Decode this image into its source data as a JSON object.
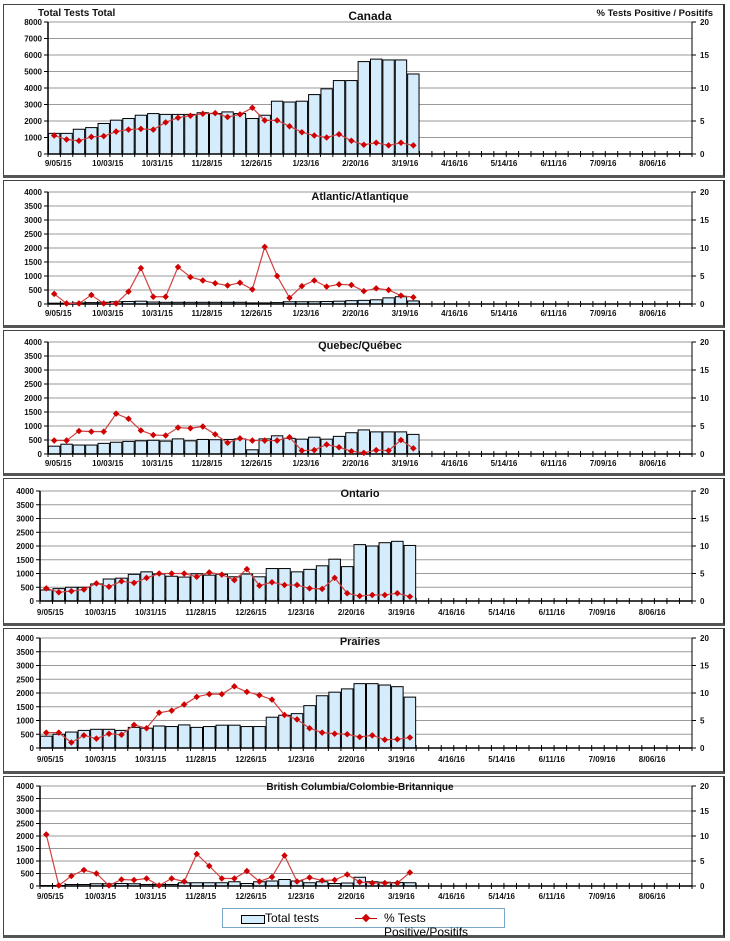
{
  "figure": {
    "left_axis_title": "Total Tests Total",
    "right_axis_title": "% Tests Positive / Positifs",
    "legend": {
      "bar_label": "Total tests",
      "line_label": "% Tests Positive/Positifs"
    },
    "colors": {
      "bar_fill": "#d4ecfb",
      "bar_stroke": "#000000",
      "line": "#d04040",
      "marker": "#d00000",
      "grid": "#9a9a9a"
    }
  },
  "chart_data": [
    {
      "type": "bar+line",
      "title": "Canada",
      "ylabel": "Total Tests Total",
      "y2label": "% Tests Positive / Positifs",
      "ylim": [
        0,
        8000
      ],
      "y_ticks": [
        "0",
        "1000",
        "2000",
        "3000",
        "4000",
        "5000",
        "6000",
        "7000",
        "8000"
      ],
      "y2lim": [
        0,
        20
      ],
      "y2_ticks": [
        "0",
        "5",
        "10",
        "15",
        "20"
      ],
      "x_tick_labels": [
        "9/05/15",
        "10/03/15",
        "10/31/15",
        "11/28/15",
        "12/26/15",
        "1/23/16",
        "2/20/16",
        "3/19/16",
        "4/16/16",
        "5/14/16",
        "6/11/16",
        "7/09/16",
        "8/06/16"
      ],
      "weeks_total": 52,
      "series": [
        {
          "name": "Total tests",
          "values": [
            1250,
            1250,
            1500,
            1600,
            1850,
            2050,
            2150,
            2350,
            2450,
            2400,
            2400,
            2400,
            2500,
            2450,
            2550,
            2450,
            2150,
            2350,
            3200,
            3150,
            3200,
            3600,
            3950,
            4450,
            4450,
            5600,
            5750,
            5700,
            5700,
            4850
          ]
        },
        {
          "name": "% Tests Positive/Positifs",
          "values": [
            2.8,
            2.2,
            2.0,
            2.6,
            2.7,
            3.4,
            3.7,
            3.8,
            3.7,
            4.8,
            5.5,
            5.8,
            6.1,
            6.2,
            5.6,
            6.0,
            7.0,
            5.1,
            5.1,
            4.2,
            3.3,
            2.8,
            2.5,
            3.0,
            2.0,
            1.4,
            1.7,
            1.3,
            1.7,
            1.3
          ]
        }
      ]
    },
    {
      "type": "bar+line",
      "title": "Atlantic/Atlantique",
      "ylim": [
        0,
        4000
      ],
      "y_ticks": [
        "0",
        "500",
        "1000",
        "1500",
        "2000",
        "2500",
        "3000",
        "3500",
        "4000"
      ],
      "y2lim": [
        0,
        20
      ],
      "y2_ticks": [
        "0",
        "5",
        "10",
        "15",
        "20"
      ],
      "x_tick_labels": [
        "9/05/15",
        "10/03/15",
        "10/31/15",
        "11/28/15",
        "12/26/15",
        "1/23/16",
        "2/20/16",
        "3/19/16",
        "4/16/16",
        "5/14/16",
        "6/11/16",
        "7/09/16",
        "8/06/16"
      ],
      "weeks_total": 52,
      "series": [
        {
          "name": "Total tests",
          "values": [
            30,
            30,
            40,
            50,
            60,
            80,
            90,
            100,
            70,
            60,
            60,
            60,
            60,
            60,
            60,
            60,
            40,
            40,
            50,
            80,
            80,
            80,
            90,
            100,
            120,
            130,
            150,
            220,
            260,
            110
          ]
        },
        {
          "name": "% Tests Positive/Positifs",
          "values": [
            1.8,
            0.1,
            0.1,
            1.6,
            0.1,
            0.1,
            2.2,
            6.4,
            1.3,
            1.3,
            6.6,
            4.8,
            4.2,
            3.7,
            3.3,
            3.8,
            2.6,
            10.2,
            5.0,
            1.1,
            3.2,
            4.2,
            3.1,
            3.5,
            3.4,
            2.3,
            2.8,
            2.5,
            1.5,
            1.2
          ]
        }
      ]
    },
    {
      "type": "bar+line",
      "title": "Quebec/Québec",
      "ylim": [
        0,
        4000
      ],
      "y_ticks": [
        "0",
        "500",
        "1000",
        "1500",
        "2000",
        "2500",
        "3000",
        "3500",
        "4000"
      ],
      "y2lim": [
        0,
        20
      ],
      "y2_ticks": [
        "0",
        "5",
        "10",
        "15",
        "20"
      ],
      "x_tick_labels": [
        "9/05/15",
        "10/03/15",
        "10/31/15",
        "11/28/15",
        "12/26/15",
        "1/23/16",
        "2/20/16",
        "3/19/16",
        "4/16/16",
        "5/14/16",
        "6/11/16",
        "7/09/16",
        "8/06/16"
      ],
      "weeks_total": 52,
      "series": [
        {
          "name": "Total tests",
          "values": [
            280,
            350,
            320,
            320,
            380,
            420,
            450,
            470,
            490,
            460,
            540,
            470,
            520,
            510,
            520,
            540,
            150,
            540,
            650,
            560,
            530,
            600,
            530,
            630,
            760,
            860,
            790,
            790,
            790,
            700
          ]
        },
        {
          "name": "% Tests Positive/Positifs",
          "values": [
            2.4,
            2.4,
            4.1,
            4.0,
            4.0,
            7.2,
            6.3,
            4.2,
            3.4,
            3.3,
            4.7,
            4.6,
            4.9,
            3.5,
            2.0,
            2.8,
            2.4,
            2.4,
            2.4,
            3.0,
            0.6,
            0.7,
            1.7,
            1.2,
            0.5,
            0.2,
            0.7,
            0.6,
            2.5,
            1.0
          ]
        }
      ]
    },
    {
      "type": "bar+line",
      "title": "Ontario",
      "ylim": [
        0,
        4000
      ],
      "y_ticks": [
        "0",
        "500",
        "1000",
        "1500",
        "2000",
        "2500",
        "3000",
        "3500",
        "4000"
      ],
      "y2lim": [
        0,
        20
      ],
      "y2_ticks": [
        "0",
        "5",
        "10",
        "15",
        "20"
      ],
      "x_tick_labels": [
        "9/05/15",
        "10/03/15",
        "10/31/15",
        "11/28/15",
        "12/26/15",
        "1/23/16",
        "2/20/16",
        "3/19/16",
        "4/16/16",
        "5/14/16",
        "6/11/16",
        "7/09/16",
        "8/06/16"
      ],
      "weeks_total": 52,
      "series": [
        {
          "name": "Total tests",
          "values": [
            400,
            450,
            500,
            500,
            620,
            800,
            830,
            970,
            1060,
            980,
            900,
            870,
            990,
            940,
            970,
            880,
            980,
            880,
            1180,
            1180,
            1060,
            1150,
            1280,
            1520,
            1250,
            2050,
            2000,
            2120,
            2170,
            2020
          ]
        },
        {
          "name": "% Tests Positive/Positifs",
          "values": [
            2.3,
            1.6,
            1.8,
            2.1,
            3.2,
            2.6,
            3.6,
            3.3,
            4.2,
            5.0,
            5.0,
            5.0,
            4.4,
            5.2,
            4.8,
            3.8,
            5.8,
            2.8,
            3.4,
            2.9,
            2.9,
            2.3,
            2.2,
            4.2,
            1.4,
            0.9,
            1.1,
            1.1,
            1.4,
            0.8
          ]
        }
      ]
    },
    {
      "type": "bar+line",
      "title": "Prairies",
      "ylim": [
        0,
        4000
      ],
      "y_ticks": [
        "0",
        "500",
        "1000",
        "1500",
        "2000",
        "2500",
        "3000",
        "3500",
        "4000"
      ],
      "y2lim": [
        0,
        20
      ],
      "y2_ticks": [
        "0",
        "5",
        "10",
        "15",
        "20"
      ],
      "x_tick_labels": [
        "9/05/15",
        "10/03/15",
        "10/31/15",
        "11/28/15",
        "12/26/15",
        "1/23/16",
        "2/20/16",
        "3/19/16",
        "4/16/16",
        "5/14/16",
        "6/11/16",
        "7/09/16",
        "8/06/16"
      ],
      "weeks_total": 52,
      "series": [
        {
          "name": "Total tests",
          "values": [
            430,
            500,
            580,
            640,
            680,
            680,
            640,
            750,
            720,
            800,
            780,
            840,
            750,
            780,
            830,
            830,
            780,
            780,
            1120,
            1190,
            1250,
            1540,
            1900,
            2030,
            2150,
            2340,
            2340,
            2290,
            2230,
            1850
          ]
        },
        {
          "name": "% Tests Positive/Positifs",
          "values": [
            2.8,
            2.8,
            1.0,
            2.3,
            1.7,
            2.6,
            2.4,
            4.2,
            3.6,
            6.4,
            6.8,
            7.9,
            9.3,
            9.8,
            9.8,
            11.2,
            10.2,
            9.6,
            8.8,
            6.0,
            5.2,
            3.6,
            2.8,
            2.6,
            2.5,
            2.0,
            2.3,
            1.5,
            1.6,
            1.9
          ]
        }
      ]
    },
    {
      "type": "bar+line",
      "title": "British Columbia/Colombie-Britannique",
      "ylim": [
        0,
        4000
      ],
      "y_ticks": [
        "0",
        "500",
        "1000",
        "1500",
        "2000",
        "2500",
        "3000",
        "3500",
        "4000"
      ],
      "y2lim": [
        0,
        20
      ],
      "y2_ticks": [
        "0",
        "5",
        "10",
        "15",
        "20"
      ],
      "x_tick_labels": [
        "9/05/15",
        "10/03/15",
        "10/31/15",
        "11/28/15",
        "12/26/15",
        "1/23/16",
        "2/20/16",
        "3/19/16",
        "4/16/16",
        "5/14/16",
        "6/11/16",
        "7/09/16",
        "8/06/16"
      ],
      "weeks_total": 52,
      "series": [
        {
          "name": "Total tests",
          "values": [
            20,
            20,
            60,
            60,
            90,
            90,
            100,
            90,
            60,
            60,
            60,
            130,
            130,
            130,
            130,
            170,
            100,
            170,
            200,
            260,
            200,
            130,
            170,
            100,
            120,
            350,
            170,
            150,
            140,
            130
          ]
        },
        {
          "name": "% Tests Positive/Positifs",
          "values": [
            10.3,
            0.1,
            2.0,
            3.2,
            2.5,
            0.1,
            1.3,
            1.2,
            1.5,
            0.1,
            1.5,
            0.9,
            6.4,
            4.0,
            1.5,
            1.5,
            3.0,
            0.9,
            1.8,
            6.1,
            0.9,
            1.7,
            1.1,
            1.2,
            2.3,
            0.8,
            0.6,
            0.6,
            0.6,
            2.7
          ]
        }
      ]
    }
  ]
}
